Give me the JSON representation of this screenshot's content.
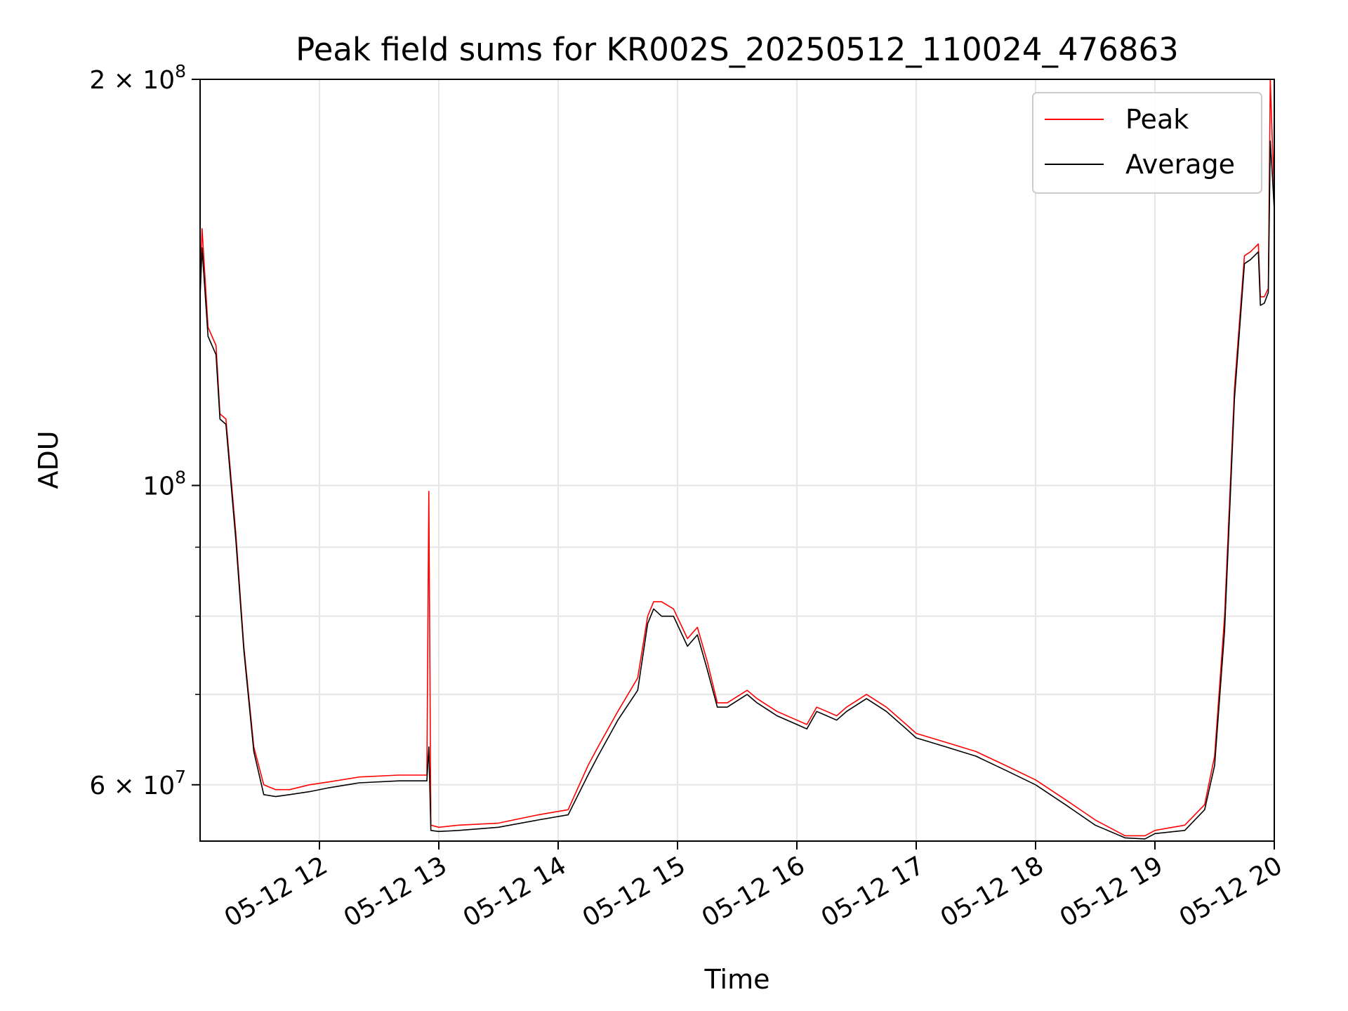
{
  "chart_data": {
    "type": "line",
    "title": "Peak field sums for KR002S_20250512_110024_476863",
    "xlabel": "Time",
    "ylabel": "ADU",
    "yscale": "log",
    "ylim": [
      54500000,
      200000000
    ],
    "xlim": [
      "2025-05-12 11:00",
      "2025-05-12 20:00"
    ],
    "grid": true,
    "legend": {
      "placement": "top-right",
      "entries": [
        {
          "label": "Peak",
          "color": "#ff0000"
        },
        {
          "label": "Average",
          "color": "#000000"
        }
      ]
    },
    "x_ticks": [
      "05-12 12",
      "05-12 13",
      "05-12 14",
      "05-12 15",
      "05-12 16",
      "05-12 17",
      "05-12 18",
      "05-12 19",
      "05-12 20"
    ],
    "y_major_ticks": [
      {
        "value": 100000000,
        "label_base": "10",
        "label_exp": "8"
      },
      {
        "value": 200000000,
        "label_base": "2 × 10",
        "label_exp": "8"
      },
      {
        "value": 60000000,
        "label_base": "6 × 10",
        "label_exp": "7"
      }
    ],
    "y_minor_ticks": [
      70000000,
      80000000,
      90000000
    ],
    "series": [
      {
        "name": "Peak",
        "color": "#ff0000",
        "x": [
          "11:00",
          "11:01",
          "11:04",
          "11:08",
          "11:10",
          "11:13",
          "11:18",
          "11:22",
          "11:27",
          "11:32",
          "11:38",
          "11:45",
          "11:55",
          "12:05",
          "12:20",
          "12:40",
          "12:54",
          "12:55",
          "12:56",
          "13:00",
          "13:10",
          "13:30",
          "13:50",
          "14:05",
          "14:15",
          "14:20",
          "14:30",
          "14:40",
          "14:45",
          "14:48",
          "14:52",
          "14:58",
          "15:05",
          "15:10",
          "15:15",
          "15:20",
          "15:25",
          "15:35",
          "15:40",
          "15:50",
          "16:00",
          "16:05",
          "16:10",
          "16:15",
          "16:20",
          "16:25",
          "16:35",
          "16:45",
          "16:55",
          "17:00",
          "17:15",
          "17:30",
          "17:45",
          "18:00",
          "18:15",
          "18:30",
          "18:45",
          "18:55",
          "19:00",
          "19:15",
          "19:25",
          "19:30",
          "19:35",
          "19:40",
          "19:45",
          "19:48",
          "19:50",
          "19:52",
          "19:53",
          "19:55",
          "19:57",
          "19:58",
          "19:59",
          "20:00"
        ],
        "y": [
          140000000,
          155000000,
          131000000,
          127000000,
          113000000,
          112000000,
          92000000,
          76000000,
          64000000,
          60000000,
          59500000,
          59500000,
          60000000,
          60300000,
          60800000,
          61000000,
          61000000,
          99000000,
          56000000,
          55800000,
          56000000,
          56200000,
          57000000,
          57500000,
          62000000,
          64000000,
          68000000,
          72000000,
          80000000,
          82000000,
          82000000,
          81000000,
          77000000,
          78500000,
          74000000,
          69000000,
          69000000,
          70500000,
          69500000,
          68000000,
          67000000,
          66500000,
          68500000,
          68000000,
          67500000,
          68500000,
          70000000,
          68500000,
          66500000,
          65500000,
          64500000,
          63500000,
          62000000,
          60500000,
          58500000,
          56500000,
          55000000,
          55000000,
          55500000,
          56000000,
          58000000,
          63000000,
          80000000,
          118000000,
          148000000,
          149000000,
          150000000,
          151000000,
          138000000,
          138000000,
          140000000,
          200000000,
          180000000,
          165000000
        ]
      },
      {
        "name": "Average",
        "color": "#000000",
        "x": [
          "11:00",
          "11:01",
          "11:04",
          "11:08",
          "11:10",
          "11:13",
          "11:18",
          "11:22",
          "11:27",
          "11:32",
          "11:38",
          "11:45",
          "11:55",
          "12:05",
          "12:20",
          "12:40",
          "12:54",
          "12:55",
          "12:56",
          "13:00",
          "13:10",
          "13:30",
          "13:50",
          "14:05",
          "14:15",
          "14:20",
          "14:30",
          "14:40",
          "14:45",
          "14:48",
          "14:52",
          "14:58",
          "15:05",
          "15:10",
          "15:15",
          "15:20",
          "15:25",
          "15:35",
          "15:40",
          "15:50",
          "16:00",
          "16:05",
          "16:10",
          "16:15",
          "16:20",
          "16:25",
          "16:35",
          "16:45",
          "16:55",
          "17:00",
          "17:15",
          "17:30",
          "17:45",
          "18:00",
          "18:15",
          "18:30",
          "18:45",
          "18:55",
          "19:00",
          "19:15",
          "19:25",
          "19:30",
          "19:35",
          "19:40",
          "19:45",
          "19:48",
          "19:50",
          "19:52",
          "19:53",
          "19:55",
          "19:57",
          "19:58",
          "19:59",
          "20:00"
        ],
        "y": [
          138000000,
          150000000,
          129000000,
          125000000,
          112000000,
          111000000,
          91000000,
          75500000,
          63500000,
          59000000,
          58800000,
          59000000,
          59300000,
          59700000,
          60200000,
          60400000,
          60400000,
          64000000,
          55500000,
          55400000,
          55500000,
          55800000,
          56500000,
          57000000,
          61000000,
          63000000,
          67000000,
          70500000,
          79000000,
          81000000,
          80000000,
          80000000,
          76000000,
          77500000,
          73000000,
          68500000,
          68500000,
          70000000,
          69000000,
          67500000,
          66500000,
          66000000,
          68000000,
          67500000,
          67000000,
          68000000,
          69500000,
          68000000,
          66000000,
          65000000,
          64000000,
          63000000,
          61500000,
          60000000,
          58000000,
          56000000,
          54800000,
          54700000,
          55200000,
          55500000,
          57500000,
          62000000,
          78000000,
          116000000,
          146000000,
          147000000,
          148000000,
          149000000,
          136000000,
          136500000,
          139000000,
          180000000,
          170000000,
          160000000
        ]
      }
    ]
  }
}
